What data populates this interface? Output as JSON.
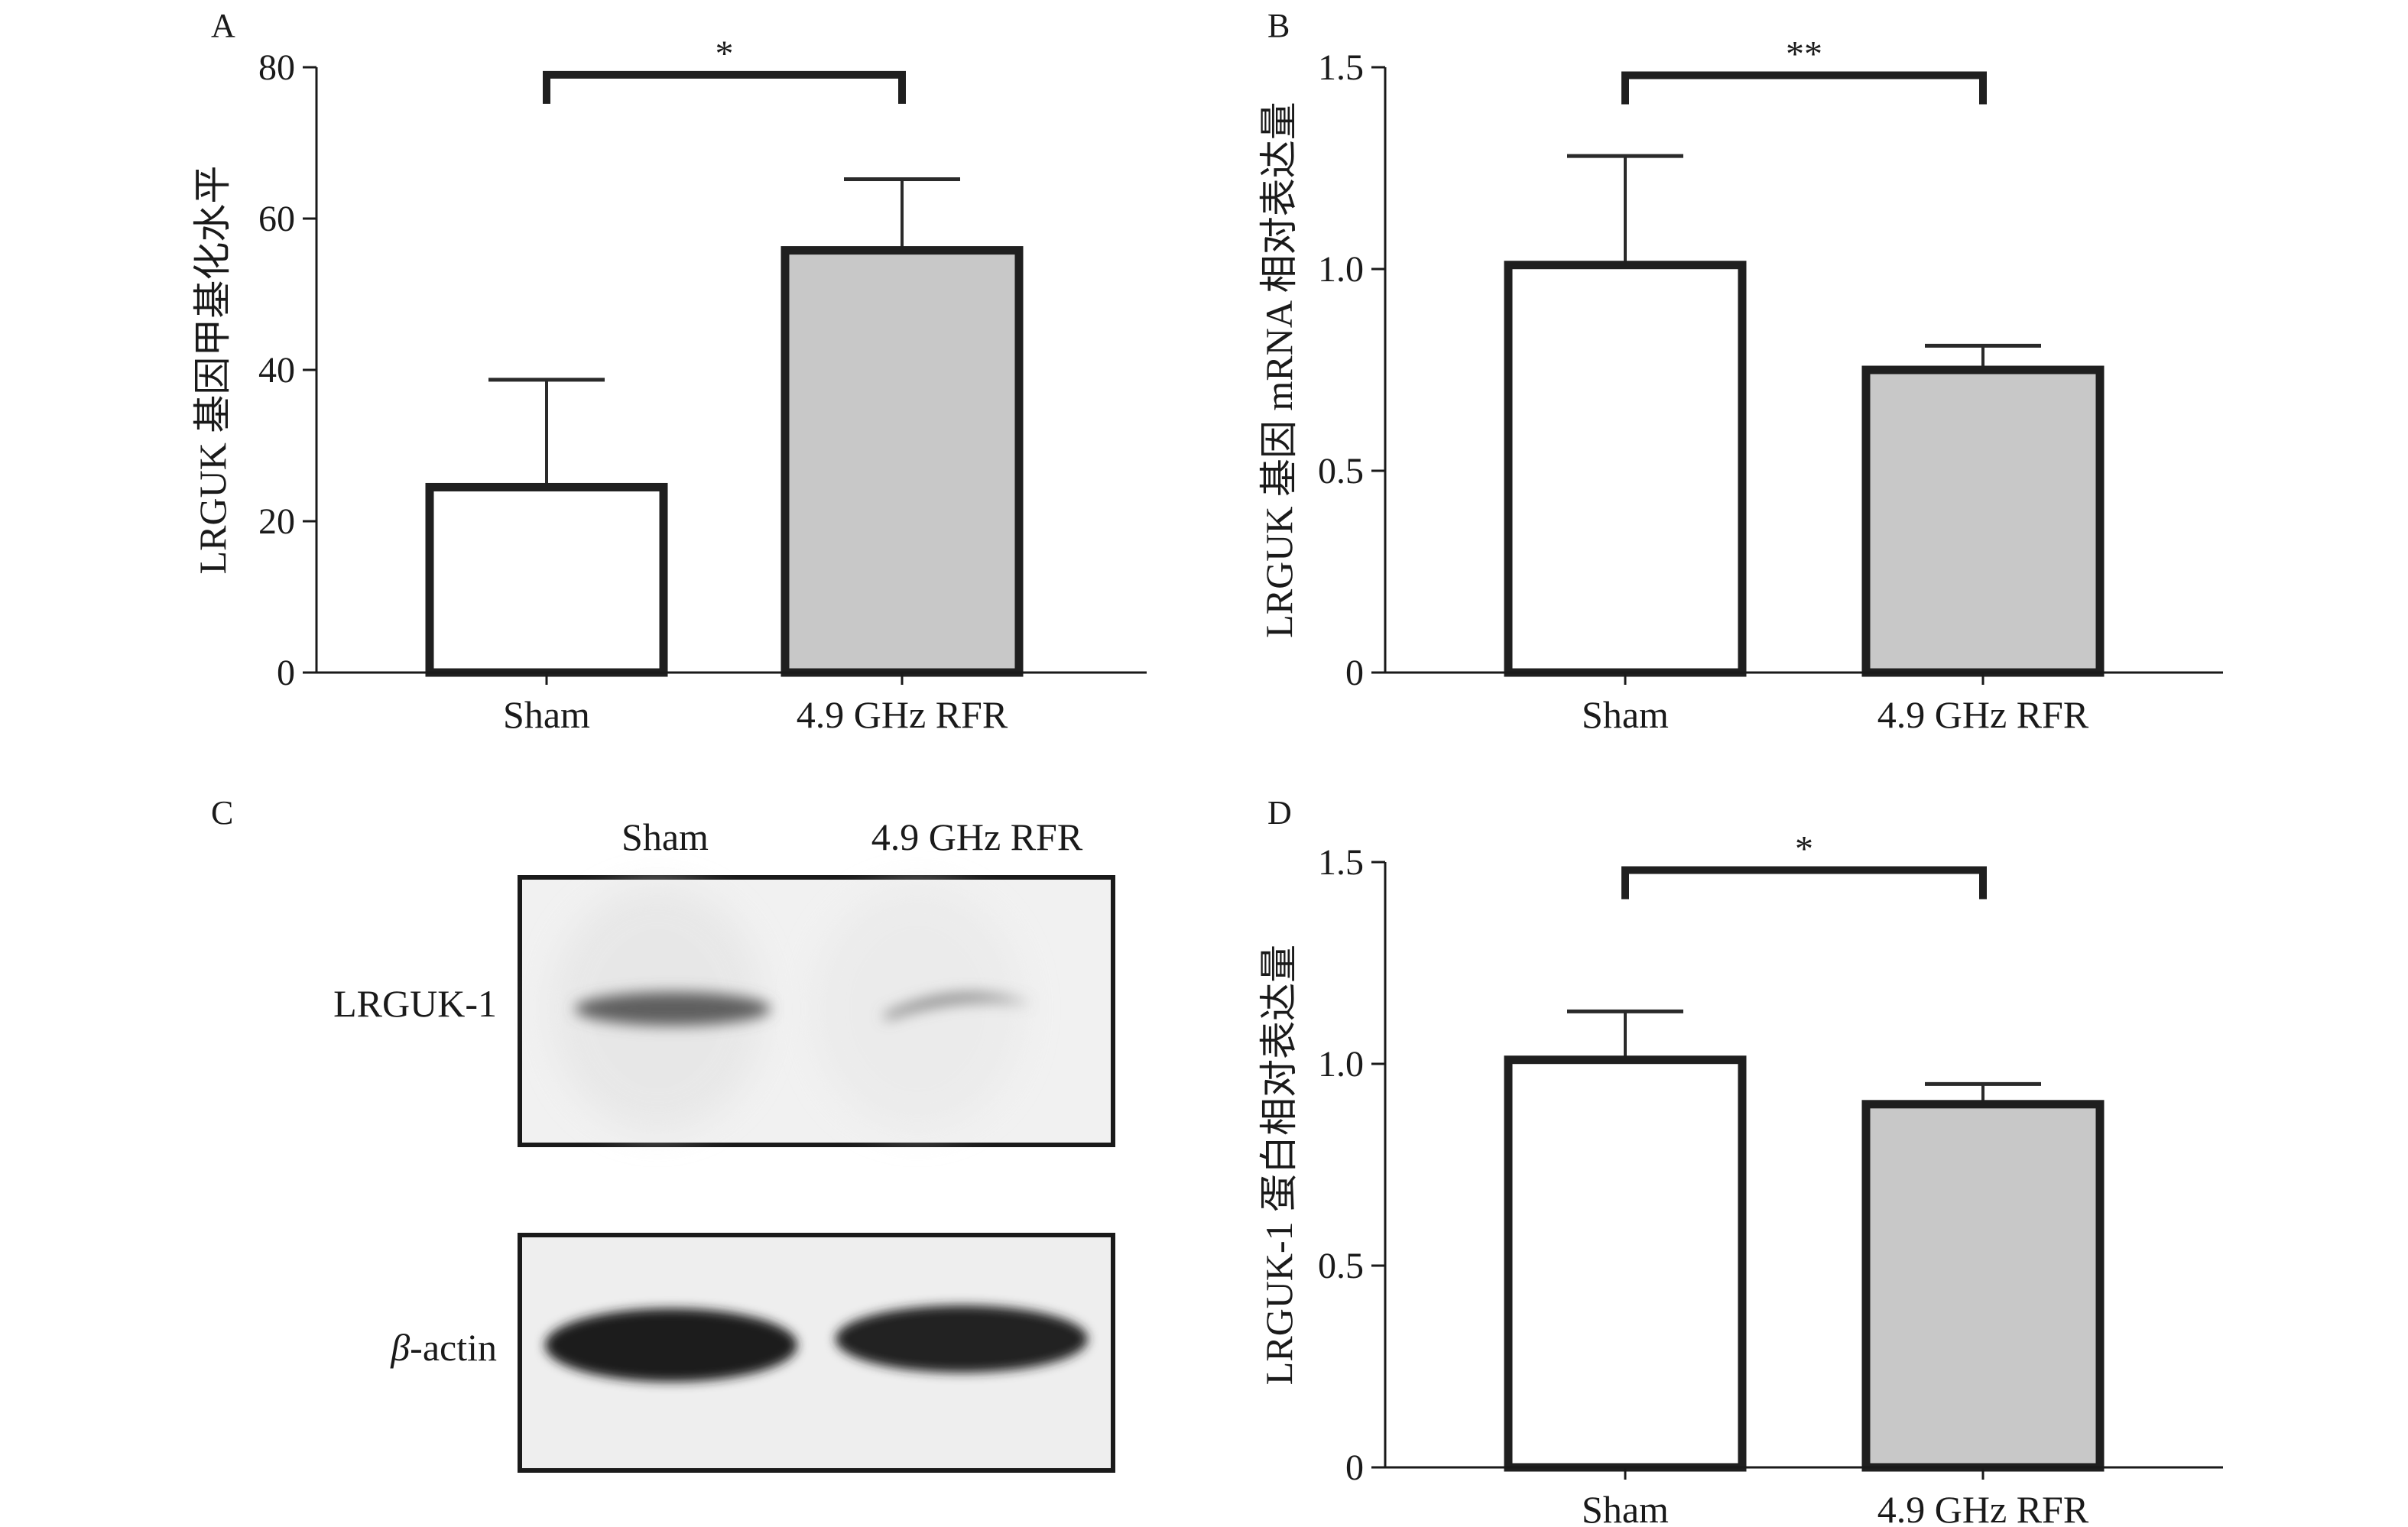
{
  "chart_data": [
    {
      "panel": "A",
      "type": "bar",
      "categories": [
        "Sham",
        "4.9 GHz RFR"
      ],
      "values": [
        24.5,
        55.8
      ],
      "errors": [
        14.2,
        9.4
      ],
      "fills": [
        "#ffffff",
        "#c8c8c8"
      ],
      "ylabel": "LRGUK 基因甲基化水平",
      "ylim": [
        0,
        80
      ],
      "yticks": [
        0,
        20,
        40,
        60,
        80
      ],
      "ytick_labels": [
        "0",
        "20",
        "40",
        "60",
        "80"
      ],
      "significance": {
        "label": "*",
        "y": 79
      }
    },
    {
      "panel": "B",
      "type": "bar",
      "categories": [
        "Sham",
        "4.9 GHz RFR"
      ],
      "values": [
        1.01,
        0.75
      ],
      "errors": [
        0.27,
        0.06
      ],
      "fills": [
        "#ffffff",
        "#c8c8c8"
      ],
      "ylabel": "LRGUK 基因 mRNA 相对表达量",
      "ylim": [
        0,
        1.5
      ],
      "yticks": [
        0,
        0.5,
        1.0,
        1.5
      ],
      "ytick_labels": [
        "0",
        "0.5",
        "1.0",
        "1.5"
      ],
      "significance": {
        "label": "**",
        "y": 1.48
      }
    },
    {
      "panel": "D",
      "type": "bar",
      "categories": [
        "Sham",
        "4.9 GHz RFR"
      ],
      "values": [
        1.01,
        0.9
      ],
      "errors": [
        0.12,
        0.05
      ],
      "fills": [
        "#ffffff",
        "#c8c8c8"
      ],
      "ylabel": "LRGUK-1 蛋白相对表达量",
      "ylim": [
        0,
        1.5
      ],
      "yticks": [
        0,
        0.5,
        1.0,
        1.5
      ],
      "ytick_labels": [
        "0",
        "0.5",
        "1.0",
        "1.5"
      ],
      "significance": {
        "label": "*",
        "y": 1.48
      }
    }
  ],
  "blot": {
    "panel": "C",
    "lanes": [
      "Sham",
      "4.9 GHz RFR"
    ],
    "bands": [
      {
        "label_prefix": "",
        "label": "LRGUK-1"
      },
      {
        "label_prefix": "β",
        "label": "-actin"
      }
    ]
  }
}
